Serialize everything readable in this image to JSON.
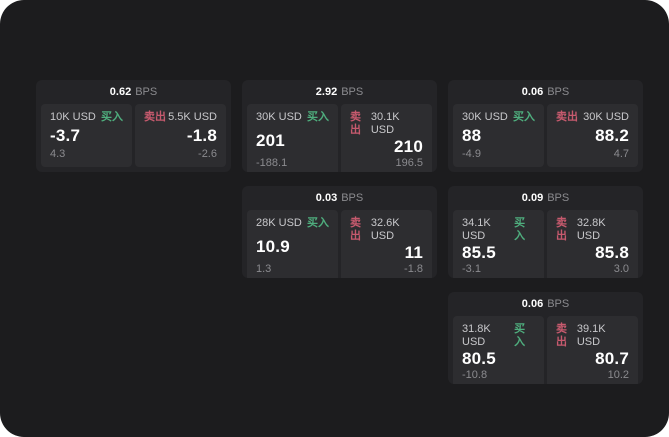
{
  "labels": {
    "bps_suffix": "BPS",
    "buy": "买入",
    "sell": "卖出"
  },
  "colors": {
    "background": "#1c1c1e",
    "card": "#242427",
    "panel": "#2d2d30",
    "buy_green": "#4fae7e",
    "sell_red": "#c75a6e"
  },
  "cards": [
    {
      "bps": "0.62",
      "buy": {
        "amount": "10K USD",
        "value": "-3.7",
        "sub": "4.3"
      },
      "sell": {
        "amount": "5.5K USD",
        "value": "-1.8",
        "sub": "-2.6"
      }
    },
    {
      "bps": "2.92",
      "buy": {
        "amount": "30K USD",
        "value": "201",
        "sub": "-188.1"
      },
      "sell": {
        "amount": "30.1K USD",
        "value": "210",
        "sub": "196.5"
      }
    },
    {
      "bps": "0.06",
      "buy": {
        "amount": "30K USD",
        "value": "88",
        "sub": "-4.9"
      },
      "sell": {
        "amount": "30K USD",
        "value": "88.2",
        "sub": "4.7"
      }
    },
    {
      "bps": "0.03",
      "buy": {
        "amount": "28K USD",
        "value": "10.9",
        "sub": "1.3"
      },
      "sell": {
        "amount": "32.6K USD",
        "value": "11",
        "sub": "-1.8"
      }
    },
    {
      "bps": "0.09",
      "buy": {
        "amount": "34.1K USD",
        "value": "85.5",
        "sub": "-3.1"
      },
      "sell": {
        "amount": "32.8K USD",
        "value": "85.8",
        "sub": "3.0"
      }
    },
    {
      "bps": "0.06",
      "buy": {
        "amount": "31.8K USD",
        "value": "80.5",
        "sub": "-10.8"
      },
      "sell": {
        "amount": "39.1K USD",
        "value": "80.7",
        "sub": "10.2"
      }
    }
  ]
}
